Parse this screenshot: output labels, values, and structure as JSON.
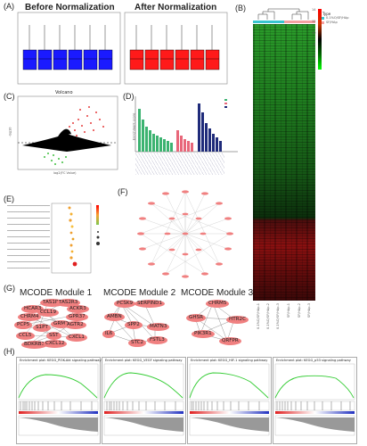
{
  "figure": {
    "panels": {
      "A": {
        "label": "(A)",
        "left_title": "Before Normalization",
        "right_title": "After Normalization",
        "yticks": [
          "15",
          "10",
          "5",
          "0"
        ]
      },
      "B": {
        "label": "(B)",
        "legend_title": "Type",
        "legend_items": [
          "0.1%O/SF/HAp",
          "SF/HAp"
        ],
        "scale_labels": [
          "14",
          "12",
          "10",
          "8",
          "6",
          "4"
        ],
        "samples": [
          "0.1%O/SF/HAp-1",
          "0.1%O/SF/HAp-2",
          "0.1%O/SF/HAp-3",
          "SF/HAp-1",
          "SF/HAp-2",
          "SF/HAp-3"
        ]
      },
      "C": {
        "label": "(C)",
        "title": "Volcano",
        "xlabel": "log2(FC Value)",
        "ylabel": "-log10"
      },
      "D": {
        "label": "(D)",
        "ylabel": "Enrichment score"
      },
      "E": {
        "label": "(E)"
      },
      "F": {
        "label": "(F)"
      },
      "G": {
        "label": "(G)",
        "modules": [
          {
            "title": "MCODE Module 1",
            "genes": [
              "TAS1R3",
              "TAS2R3",
              "ACKR3",
              "HCAR3",
              "CCL19",
              "CHRM4",
              "GPR37",
              "PCP5",
              "S1PT",
              "GRM2",
              "AGTR2",
              "CCL5",
              "SST",
              "CXCL1",
              "BDKRB1",
              "CXCL12"
            ]
          },
          {
            "title": "MCODE Module 2",
            "genes": [
              "PCSK9",
              "SERPIND1",
              "AMBN",
              "SPP2",
              "MATN3",
              "IL6",
              "FSTL3",
              "STC2"
            ]
          },
          {
            "title": "MCODE Module 3",
            "genes": [
              "CHRM5",
              "GHSR",
              "HTR2C",
              "PIK3R1",
              "QRFPR"
            ]
          }
        ]
      },
      "H": {
        "label": "(H)",
        "plots": [
          "Enrichment plot: KEGG_PI3K-Akt signaling pathway",
          "Enrichment plot: KEGG_VEGF signaling pathway",
          "Enrichment plot: KEGG_HIF-1 signaling pathway",
          "Enrichment plot: KEGG_p53 signaling pathway"
        ]
      }
    },
    "colors": {
      "blue_box": "#1a1aff",
      "red_box": "#ff1a1a",
      "green_bar": "#3cb371",
      "pink_bar": "#e8677a",
      "navy_bar": "#1f2b7a",
      "node": "#f08080",
      "gsea_line": "#33cc33"
    }
  }
}
